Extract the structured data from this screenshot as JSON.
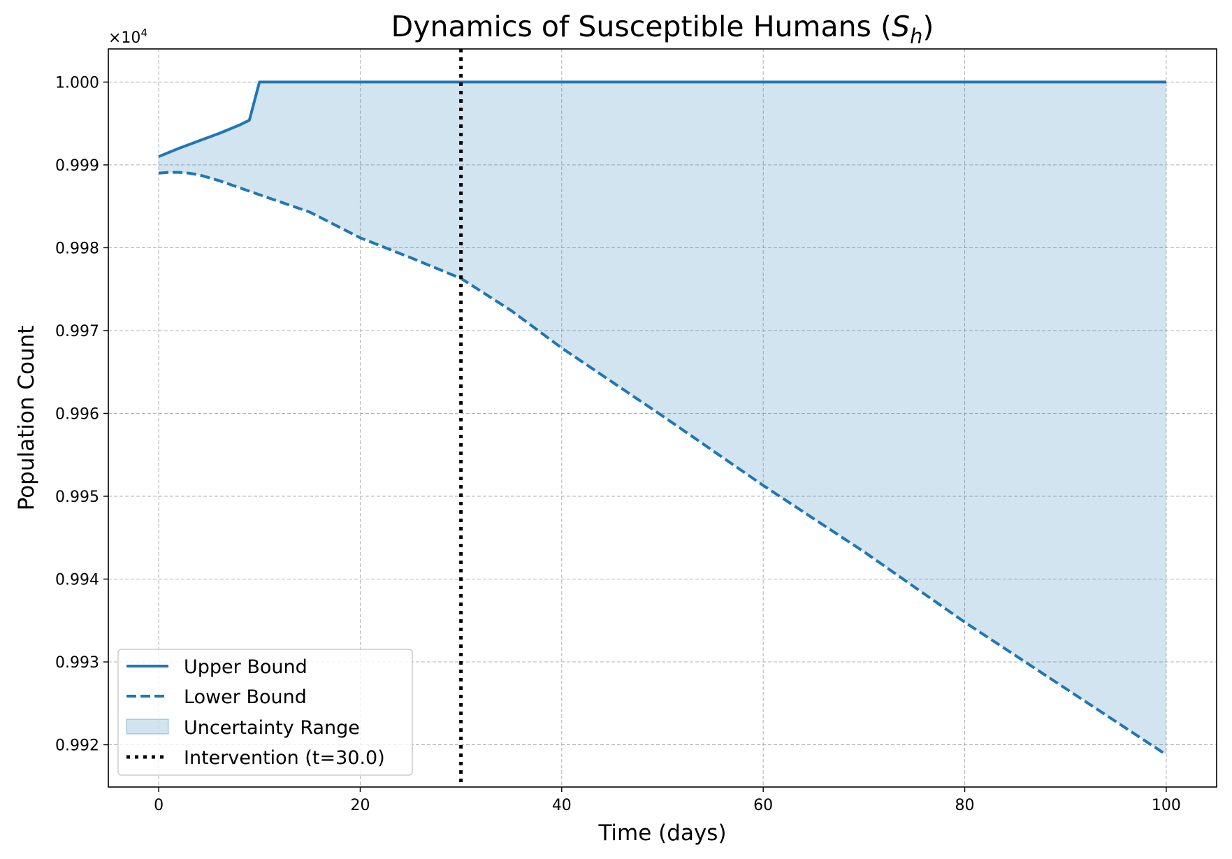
{
  "chart_data": {
    "type": "line",
    "title": "Dynamics of Susceptible Humans (",
    "title_symbol": "S",
    "title_subscript": "h",
    "title_close": ")",
    "xlabel": "Time (days)",
    "ylabel": "Population Count",
    "y_multiplier": "×10",
    "y_multiplier_exp": "4",
    "xlim": [
      -5,
      105
    ],
    "ylim": [
      0.99149,
      1.0004
    ],
    "xticks": [
      0,
      20,
      40,
      60,
      80,
      100
    ],
    "yticks": [
      0.992,
      0.993,
      0.994,
      0.995,
      0.996,
      0.997,
      0.998,
      0.999,
      1.0
    ],
    "ytick_labels": [
      "0.992",
      "0.993",
      "0.994",
      "0.995",
      "0.996",
      "0.997",
      "0.998",
      "0.999",
      "1.000"
    ],
    "grid": true,
    "legend_position": "lower-left",
    "colors": {
      "series": "#1f77b4",
      "fill": "#1f77b4",
      "intervention": "#000000"
    },
    "series": [
      {
        "name": "Upper Bound",
        "style": "solid",
        "x": [
          0,
          1,
          2,
          4,
          6,
          8,
          9,
          10,
          20,
          30,
          40,
          50,
          60,
          70,
          80,
          90,
          100
        ],
        "y": [
          0.9991,
          0.99915,
          0.9992,
          0.99929,
          0.99938,
          0.99948,
          0.99954,
          1.0,
          1.0,
          1.0,
          1.0,
          1.0,
          1.0,
          1.0,
          1.0,
          1.0,
          1.0
        ]
      },
      {
        "name": "Lower Bound",
        "style": "dashed",
        "x": [
          0,
          1,
          2,
          3,
          4,
          6,
          10,
          15,
          20,
          25,
          30,
          35,
          40,
          50,
          60,
          70,
          80,
          90,
          100
        ],
        "y": [
          0.9989,
          0.99891,
          0.99891,
          0.9989,
          0.99888,
          0.99881,
          0.99864,
          0.99843,
          0.99812,
          0.99788,
          0.99763,
          0.99724,
          0.99679,
          0.99597,
          0.99513,
          0.99433,
          0.99348,
          0.99268,
          0.99188
        ]
      }
    ],
    "fill_between": {
      "name": "Uncertainty Range",
      "opacity": 0.2
    },
    "vline": {
      "name": "Intervention (t=30.0)",
      "x": 30,
      "style": "dotted"
    }
  }
}
